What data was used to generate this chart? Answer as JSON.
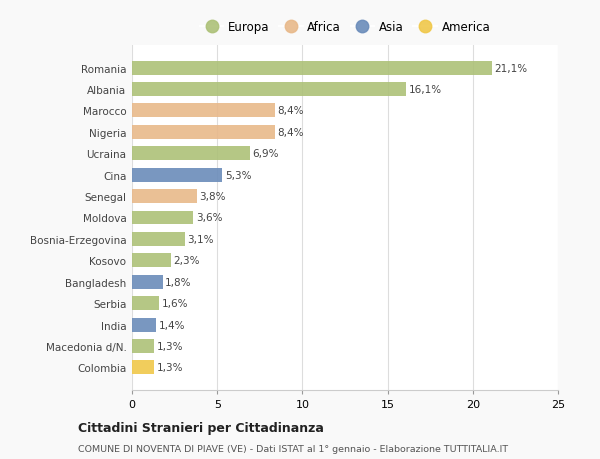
{
  "categories": [
    "Romania",
    "Albania",
    "Marocco",
    "Nigeria",
    "Ucraina",
    "Cina",
    "Senegal",
    "Moldova",
    "Bosnia-Erzegovina",
    "Kosovo",
    "Bangladesh",
    "Serbia",
    "India",
    "Macedonia d/N.",
    "Colombia"
  ],
  "values": [
    21.1,
    16.1,
    8.4,
    8.4,
    6.9,
    5.3,
    3.8,
    3.6,
    3.1,
    2.3,
    1.8,
    1.6,
    1.4,
    1.3,
    1.3
  ],
  "continents": [
    "Europa",
    "Europa",
    "Africa",
    "Africa",
    "Europa",
    "Asia",
    "Africa",
    "Europa",
    "Europa",
    "Europa",
    "Asia",
    "Europa",
    "Asia",
    "Europa",
    "America"
  ],
  "colors": {
    "Europa": "#adc178",
    "Africa": "#e8b98a",
    "Asia": "#6b8cba",
    "America": "#f0c84a"
  },
  "legend_order": [
    "Europa",
    "Africa",
    "Asia",
    "America"
  ],
  "xlim": [
    0,
    25
  ],
  "xticks": [
    0,
    5,
    10,
    15,
    20,
    25
  ],
  "title": "Cittadini Stranieri per Cittadinanza",
  "subtitle": "COMUNE DI NOVENTA DI PIAVE (VE) - Dati ISTAT al 1° gennaio - Elaborazione TUTTITALIA.IT",
  "background_color": "#f9f9f9",
  "plot_bg_color": "#ffffff"
}
